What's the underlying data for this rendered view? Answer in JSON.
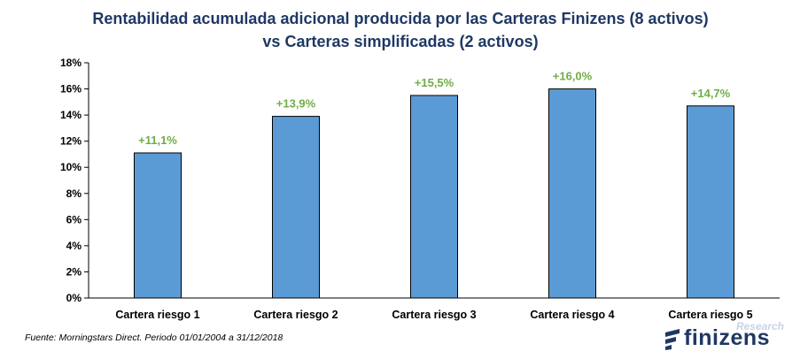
{
  "chart_data": {
    "type": "bar",
    "title_lines": [
      "Rentabilidad acumulada adicional producida por las Carteras Finizens (8 activos)",
      "vs Carteras simplificadas (2 activos)"
    ],
    "categories": [
      "Cartera riesgo 1",
      "Cartera riesgo 2",
      "Cartera riesgo 3",
      "Cartera riesgo 4",
      "Cartera riesgo 5"
    ],
    "values": [
      11.1,
      13.9,
      15.5,
      16.0,
      14.7
    ],
    "data_labels": [
      "+11,1%",
      "+13,9%",
      "+15,5%",
      "+16,0%",
      "+14,7%"
    ],
    "yticks": [
      0,
      2,
      4,
      6,
      8,
      10,
      12,
      14,
      16,
      18
    ],
    "ytick_labels": [
      "0%",
      "2%",
      "4%",
      "6%",
      "8%",
      "10%",
      "12%",
      "14%",
      "16%",
      "18%"
    ],
    "ylim": [
      0,
      18
    ],
    "grid": false,
    "legend": "none",
    "bar_color": "#5b9bd5",
    "bar_border_color": "#000000",
    "label_color": "#70ad47"
  },
  "source_note": "Fuente: Morningstars Direct. Periodo 01/01/2004 a 31/12/2018",
  "logo": {
    "research": "Research",
    "wordmark": "finizens",
    "brand_color": "#1f3864",
    "icon": "finizens-logo-icon"
  }
}
